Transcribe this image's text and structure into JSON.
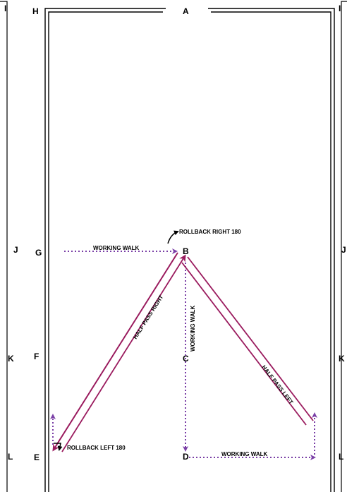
{
  "arena": {
    "letters": {
      "I_left": "I",
      "H": "H",
      "A": "A",
      "I_right": "I",
      "J_left": "J",
      "G": "G",
      "B": "B",
      "J_right": "J",
      "K_left": "K",
      "F": "F",
      "C": "C",
      "K_right": "K",
      "L_left": "L",
      "E": "E",
      "D": "D",
      "L_right": "L"
    }
  },
  "movements": {
    "rollback_right": "ROLLBACK RIGHT 180",
    "rollback_left": "ROLLBACK LEFT 180",
    "working_walk_top": "WORKING WALK",
    "working_walk_center": "WORKING WALK",
    "working_walk_bottom": "WORKING WALK",
    "half_pass_right": "HALF PASS RIGHT",
    "half_pass_left": "HALF PASS LEFT"
  },
  "colors": {
    "half_pass": "#9a1b5e",
    "working_walk": "#7a3fa6",
    "rollback": "#000000",
    "walls": "#000000"
  }
}
